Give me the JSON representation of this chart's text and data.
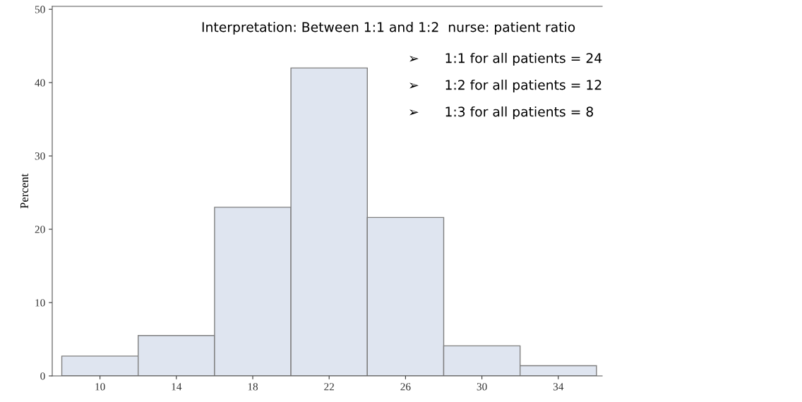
{
  "chart_data": {
    "type": "histogram",
    "ylabel": "Percent",
    "bins": [
      8,
      12,
      16,
      20,
      24,
      28,
      32,
      36
    ],
    "values": [
      2.7,
      5.5,
      23.0,
      42.0,
      21.6,
      4.1,
      1.4
    ],
    "color": "#dfe5f0",
    "xlim": [
      7.5,
      36.3
    ],
    "xticks": [
      10,
      14,
      18,
      22,
      26,
      30,
      34
    ],
    "ylim": [
      0,
      50.4
    ],
    "yticks": [
      0,
      10,
      20,
      30,
      40,
      50
    ],
    "grid": false,
    "annotations": [
      "Interpretation: Between 1:1 and 1:2  nurse: patient ratio",
      "➢      1:1 for all patients = 24",
      "➢      1:2 for all patients = 12",
      "➢      1:3 for all patients = 8"
    ]
  }
}
